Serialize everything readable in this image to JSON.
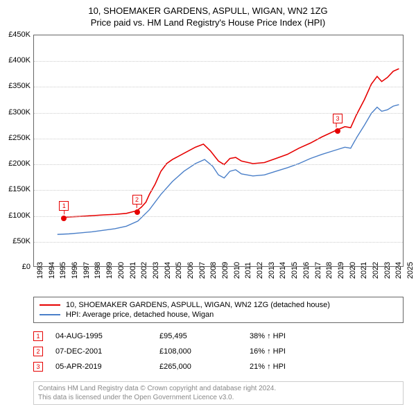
{
  "title": "10, SHOEMAKER GARDENS, ASPULL, WIGAN, WN2 1ZG",
  "subtitle": "Price paid vs. HM Land Registry's House Price Index (HPI)",
  "chart": {
    "type": "line",
    "background_color": "#ffffff",
    "border_color": "#666666",
    "grid_color": "#cccccc",
    "xlim": [
      1993,
      2025
    ],
    "ylim": [
      0,
      450000
    ],
    "ytick_step": 50000,
    "yticks": [
      {
        "v": 0,
        "label": "£0"
      },
      {
        "v": 50000,
        "label": "£50K"
      },
      {
        "v": 100000,
        "label": "£100K"
      },
      {
        "v": 150000,
        "label": "£150K"
      },
      {
        "v": 200000,
        "label": "£200K"
      },
      {
        "v": 250000,
        "label": "£250K"
      },
      {
        "v": 300000,
        "label": "£300K"
      },
      {
        "v": 350000,
        "label": "£350K"
      },
      {
        "v": 400000,
        "label": "£400K"
      },
      {
        "v": 450000,
        "label": "£450K"
      }
    ],
    "xticks": [
      1993,
      1994,
      1995,
      1996,
      1997,
      1998,
      1999,
      2000,
      2001,
      2002,
      2003,
      2004,
      2005,
      2006,
      2007,
      2008,
      2009,
      2010,
      2011,
      2012,
      2013,
      2014,
      2015,
      2016,
      2017,
      2018,
      2019,
      2020,
      2021,
      2022,
      2023,
      2024,
      2025
    ],
    "series": [
      {
        "name": "property",
        "label": "10, SHOEMAKER GARDENS, ASPULL, WIGAN, WN2 1ZG (detached house)",
        "color": "#e60000",
        "line_width": 1.6,
        "data": [
          [
            1995.6,
            95495
          ],
          [
            1996,
            96000
          ],
          [
            1997,
            97000
          ],
          [
            1998,
            98500
          ],
          [
            1999,
            100000
          ],
          [
            2000,
            101000
          ],
          [
            2001,
            103000
          ],
          [
            2001.9,
            108000
          ],
          [
            2002.3,
            115000
          ],
          [
            2002.7,
            125000
          ],
          [
            2003,
            140000
          ],
          [
            2003.5,
            160000
          ],
          [
            2004,
            185000
          ],
          [
            2004.5,
            200000
          ],
          [
            2005,
            208000
          ],
          [
            2006,
            220000
          ],
          [
            2007,
            232000
          ],
          [
            2007.7,
            238000
          ],
          [
            2008.3,
            225000
          ],
          [
            2009,
            205000
          ],
          [
            2009.5,
            198000
          ],
          [
            2010,
            210000
          ],
          [
            2010.5,
            212000
          ],
          [
            2011,
            205000
          ],
          [
            2012,
            200000
          ],
          [
            2013,
            202000
          ],
          [
            2014,
            210000
          ],
          [
            2015,
            218000
          ],
          [
            2016,
            230000
          ],
          [
            2017,
            240000
          ],
          [
            2018,
            252000
          ],
          [
            2019.25,
            265000
          ],
          [
            2020,
            272000
          ],
          [
            2020.5,
            270000
          ],
          [
            2021,
            295000
          ],
          [
            2021.7,
            325000
          ],
          [
            2022.3,
            355000
          ],
          [
            2022.8,
            370000
          ],
          [
            2023.2,
            360000
          ],
          [
            2023.7,
            368000
          ],
          [
            2024.2,
            380000
          ],
          [
            2024.7,
            385000
          ]
        ]
      },
      {
        "name": "hpi",
        "label": "HPI: Average price, detached house, Wigan",
        "color": "#4a7fc8",
        "line_width": 1.4,
        "data": [
          [
            1995,
            62000
          ],
          [
            1996,
            63000
          ],
          [
            1997,
            65000
          ],
          [
            1998,
            67000
          ],
          [
            1999,
            70000
          ],
          [
            2000,
            73000
          ],
          [
            2001,
            78000
          ],
          [
            2002,
            88000
          ],
          [
            2003,
            110000
          ],
          [
            2004,
            140000
          ],
          [
            2005,
            165000
          ],
          [
            2006,
            185000
          ],
          [
            2007,
            200000
          ],
          [
            2007.8,
            208000
          ],
          [
            2008.5,
            195000
          ],
          [
            2009,
            178000
          ],
          [
            2009.5,
            172000
          ],
          [
            2010,
            185000
          ],
          [
            2010.5,
            188000
          ],
          [
            2011,
            180000
          ],
          [
            2012,
            176000
          ],
          [
            2013,
            178000
          ],
          [
            2014,
            185000
          ],
          [
            2015,
            192000
          ],
          [
            2016,
            200000
          ],
          [
            2017,
            210000
          ],
          [
            2018,
            218000
          ],
          [
            2019,
            225000
          ],
          [
            2020,
            232000
          ],
          [
            2020.5,
            230000
          ],
          [
            2021,
            250000
          ],
          [
            2021.7,
            275000
          ],
          [
            2022.3,
            298000
          ],
          [
            2022.8,
            310000
          ],
          [
            2023.2,
            302000
          ],
          [
            2023.7,
            305000
          ],
          [
            2024.2,
            312000
          ],
          [
            2024.7,
            315000
          ]
        ]
      }
    ],
    "sale_markers": [
      {
        "n": "1",
        "x": 1995.6,
        "y": 95495,
        "color": "#e60000"
      },
      {
        "n": "2",
        "x": 2001.9,
        "y": 108000,
        "color": "#e60000"
      },
      {
        "n": "3",
        "x": 2019.25,
        "y": 265000,
        "color": "#e60000"
      }
    ]
  },
  "legend": {
    "items": [
      {
        "color": "#e60000",
        "label": "10, SHOEMAKER GARDENS, ASPULL, WIGAN, WN2 1ZG (detached house)"
      },
      {
        "color": "#4a7fc8",
        "label": "HPI: Average price, detached house, Wigan"
      }
    ]
  },
  "sales": {
    "marker_color": "#e60000",
    "rows": [
      {
        "n": "1",
        "date": "04-AUG-1995",
        "price": "£95,495",
        "delta": "38% ↑ HPI"
      },
      {
        "n": "2",
        "date": "07-DEC-2001",
        "price": "£108,000",
        "delta": "16% ↑ HPI"
      },
      {
        "n": "3",
        "date": "05-APR-2019",
        "price": "£265,000",
        "delta": "21% ↑ HPI"
      }
    ]
  },
  "footer": {
    "line1": "Contains HM Land Registry data © Crown copyright and database right 2024.",
    "line2": "This data is licensed under the Open Government Licence v3.0."
  }
}
